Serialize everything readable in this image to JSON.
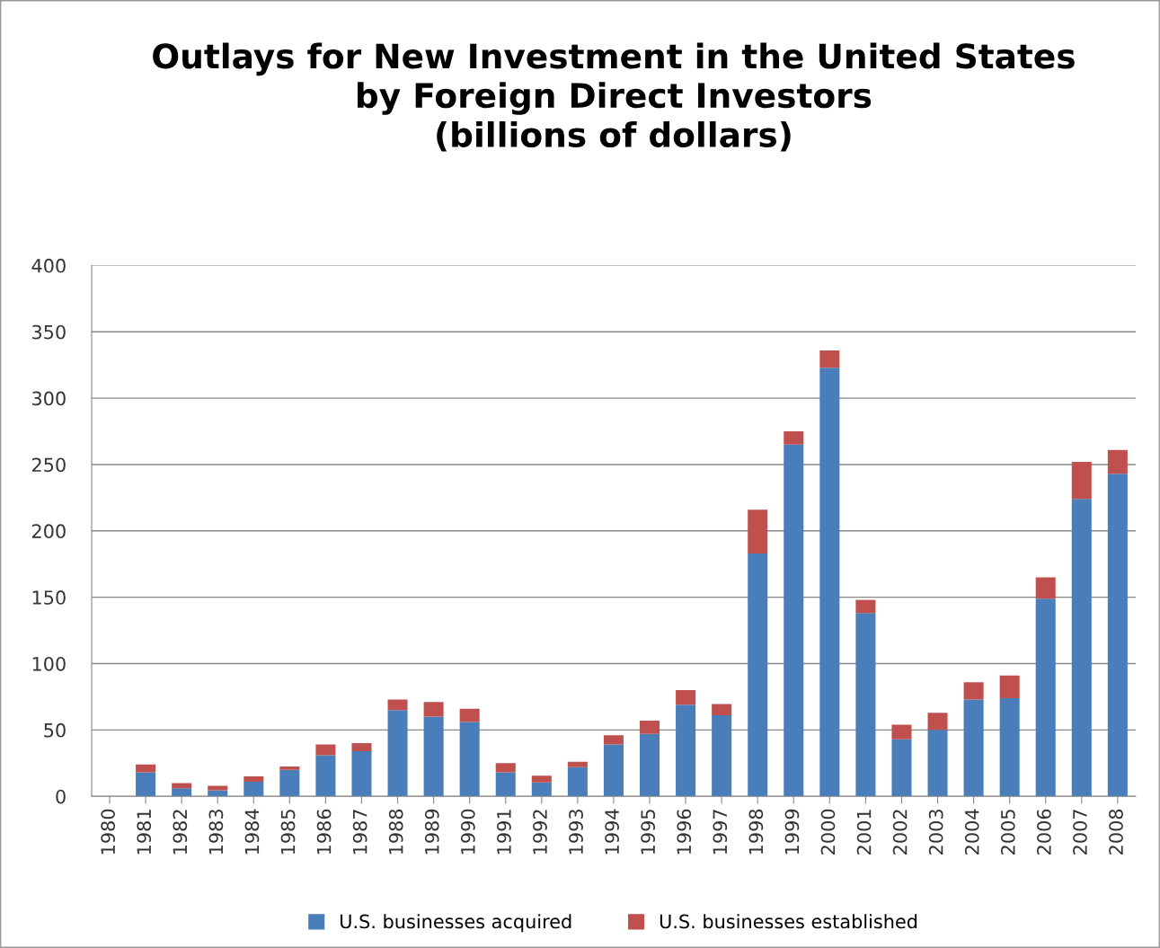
{
  "chart_data": {
    "type": "bar",
    "stacked": true,
    "title": "Outlays for New Investment in the United States\nby Foreign Direct Investors\n(billions of dollars)",
    "categories": [
      "1980",
      "1981",
      "1982",
      "1983",
      "1984",
      "1985",
      "1986",
      "1987",
      "1988",
      "1989",
      "1990",
      "1991",
      "1992",
      "1993",
      "1994",
      "1995",
      "1996",
      "1997",
      "1998",
      "1999",
      "2000",
      "2001",
      "2002",
      "2003",
      "2004",
      "2005",
      "2006",
      "2007",
      "2008"
    ],
    "series": [
      {
        "name": "U.S. businesses acquired",
        "color": "#4a7ebb",
        "values": [
          null,
          18,
          6,
          4.5,
          11,
          20,
          31,
          34,
          65,
          60,
          56,
          18,
          10.5,
          22,
          39,
          47,
          69,
          61,
          183,
          265,
          323,
          138,
          43,
          50,
          73,
          74,
          149,
          224,
          243
        ]
      },
      {
        "name": "U.S. businesses established",
        "color": "#c0504d",
        "values": [
          null,
          6,
          4,
          3.4,
          4,
          2.5,
          8,
          6,
          8,
          11,
          10,
          7,
          5,
          4,
          7,
          10,
          11,
          8.5,
          33,
          10,
          13,
          10,
          11,
          13,
          13,
          17,
          16,
          28,
          18
        ]
      }
    ],
    "ylim": [
      0,
      400
    ],
    "yticks": [
      0,
      50,
      100,
      150,
      200,
      250,
      300,
      350,
      400
    ],
    "grid": "y",
    "legend": "bottom"
  }
}
